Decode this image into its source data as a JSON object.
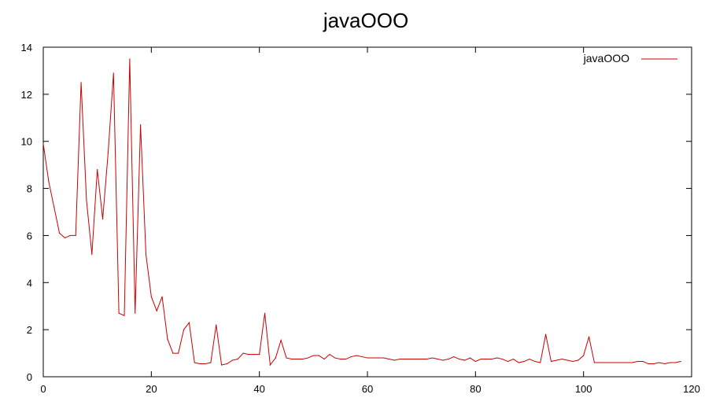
{
  "chart_data": {
    "type": "line",
    "title": "javaOOO",
    "xlabel": "",
    "ylabel": "",
    "xlim": [
      0,
      120
    ],
    "ylim": [
      0,
      14
    ],
    "x_ticks": [
      0,
      20,
      40,
      60,
      80,
      100,
      120
    ],
    "y_ticks": [
      0,
      2,
      4,
      6,
      8,
      10,
      12,
      14
    ],
    "grid": false,
    "legend_position": "top-right",
    "series": [
      {
        "name": "javaOOO",
        "color": "#cc0000",
        "x": [
          0,
          1,
          2,
          3,
          4,
          5,
          6,
          7,
          8,
          9,
          10,
          11,
          12,
          13,
          14,
          15,
          16,
          17,
          18,
          19,
          20,
          21,
          22,
          23,
          24,
          25,
          26,
          27,
          28,
          29,
          30,
          31,
          32,
          33,
          34,
          35,
          36,
          37,
          38,
          39,
          40,
          41,
          42,
          43,
          44,
          45,
          46,
          47,
          48,
          49,
          50,
          51,
          52,
          53,
          54,
          55,
          56,
          57,
          58,
          59,
          60,
          61,
          62,
          63,
          64,
          65,
          66,
          67,
          68,
          69,
          70,
          71,
          72,
          73,
          74,
          75,
          76,
          77,
          78,
          79,
          80,
          81,
          82,
          83,
          84,
          85,
          86,
          87,
          88,
          89,
          90,
          91,
          92,
          93,
          94,
          95,
          96,
          97,
          98,
          99,
          100,
          101,
          102,
          103,
          104,
          105,
          106,
          107,
          108,
          109,
          110,
          111,
          112,
          113,
          114,
          115,
          116,
          117,
          118
        ],
        "values": [
          9.9,
          8.3,
          7.2,
          6.1,
          5.9,
          6.0,
          6.0,
          12.5,
          7.5,
          5.2,
          8.8,
          6.7,
          9.5,
          12.9,
          2.7,
          2.6,
          13.5,
          2.7,
          10.7,
          5.2,
          3.4,
          2.8,
          3.4,
          1.6,
          1.0,
          1.0,
          2.0,
          2.3,
          0.6,
          0.55,
          0.55,
          0.6,
          2.2,
          0.5,
          0.55,
          0.7,
          0.75,
          1.0,
          0.95,
          0.95,
          0.95,
          2.7,
          0.5,
          0.8,
          1.55,
          0.8,
          0.75,
          0.75,
          0.75,
          0.8,
          0.9,
          0.9,
          0.75,
          0.95,
          0.8,
          0.75,
          0.75,
          0.85,
          0.9,
          0.85,
          0.8,
          0.8,
          0.8,
          0.8,
          0.75,
          0.7,
          0.75,
          0.75,
          0.75,
          0.75,
          0.75,
          0.75,
          0.8,
          0.75,
          0.7,
          0.75,
          0.85,
          0.75,
          0.7,
          0.8,
          0.65,
          0.75,
          0.75,
          0.75,
          0.8,
          0.75,
          0.65,
          0.75,
          0.6,
          0.65,
          0.75,
          0.65,
          0.6,
          1.8,
          0.65,
          0.7,
          0.75,
          0.7,
          0.65,
          0.7,
          0.9,
          1.7,
          0.6,
          0.6,
          0.6,
          0.6,
          0.6,
          0.6,
          0.6,
          0.6,
          0.65,
          0.65,
          0.55,
          0.55,
          0.6,
          0.55,
          0.6,
          0.6,
          0.65
        ]
      }
    ]
  }
}
